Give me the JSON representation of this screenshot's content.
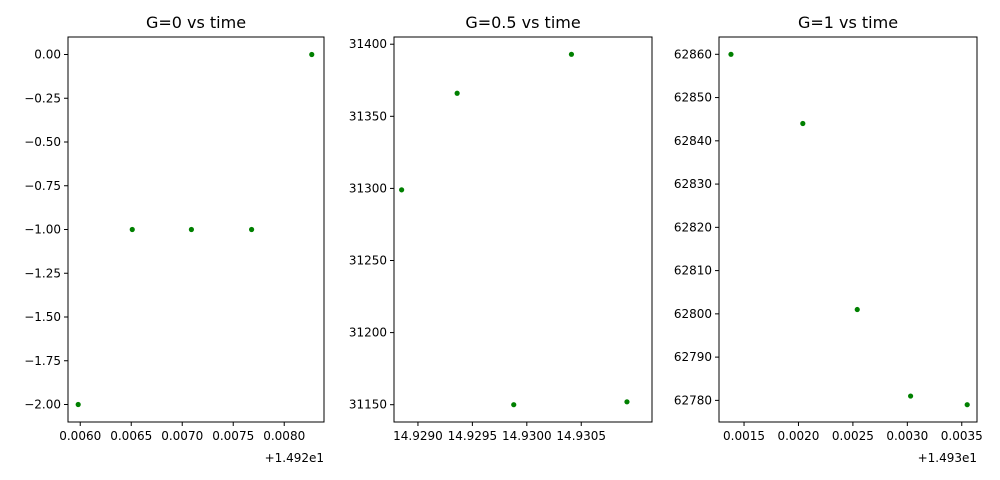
{
  "chart_data": [
    {
      "type": "scatter",
      "title": "G=0 vs time",
      "color": "#008000",
      "x_offset_label": "+1.492e1",
      "xlim": [
        0.00588,
        0.00839
      ],
      "ylim": [
        -2.1,
        0.1
      ],
      "xticks": [
        0.006,
        0.0065,
        0.007,
        0.0075,
        0.008
      ],
      "xtick_labels": [
        "0.0060",
        "0.0065",
        "0.0070",
        "0.0075",
        "0.0080"
      ],
      "yticks": [
        0.0,
        -0.25,
        -0.5,
        -0.75,
        -1.0,
        -1.25,
        -1.5,
        -1.75,
        -2.0
      ],
      "ytick_labels": [
        "0.00",
        "−0.25",
        "−0.50",
        "−0.75",
        "−1.00",
        "−1.25",
        "−1.50",
        "−1.75",
        "−2.00"
      ],
      "series": [
        {
          "x": [
            0.00598,
            0.00651,
            0.00709,
            0.00768,
            0.00827
          ],
          "y": [
            -2,
            -1,
            -1,
            -1,
            0
          ]
        }
      ]
    },
    {
      "type": "scatter",
      "title": "G=0.5 vs time",
      "color": "#008000",
      "x_offset_label": "",
      "xlim": [
        14.92878,
        14.93115
      ],
      "ylim": [
        31138,
        31405
      ],
      "xticks": [
        14.929,
        14.9295,
        14.93,
        14.9305
      ],
      "xtick_labels": [
        "14.9290",
        "14.9295",
        "14.9300",
        "14.9305"
      ],
      "yticks": [
        31150,
        31200,
        31250,
        31300,
        31350,
        31400
      ],
      "ytick_labels": [
        "31150",
        "31200",
        "31250",
        "31300",
        "31350",
        "31400"
      ],
      "series": [
        {
          "x": [
            14.92885,
            14.92936,
            14.92988,
            14.93041,
            14.93092
          ],
          "y": [
            31299,
            31366,
            31150,
            31393,
            31152
          ]
        }
      ]
    },
    {
      "type": "scatter",
      "title": "G=1 vs time",
      "color": "#008000",
      "x_offset_label": "+1.493e1",
      "xlim": [
        0.00127,
        0.00364
      ],
      "ylim": [
        62775,
        62864
      ],
      "xticks": [
        0.0015,
        0.002,
        0.0025,
        0.003,
        0.0035
      ],
      "xtick_labels": [
        "0.0015",
        "0.0020",
        "0.0025",
        "0.0030",
        "0.0035"
      ],
      "yticks": [
        62780,
        62790,
        62800,
        62810,
        62820,
        62830,
        62840,
        62850,
        62860
      ],
      "ytick_labels": [
        "62780",
        "62790",
        "62800",
        "62810",
        "62820",
        "62830",
        "62840",
        "62850",
        "62860"
      ],
      "series": [
        {
          "x": [
            0.00138,
            0.00204,
            0.00254,
            0.00303,
            0.00355
          ],
          "y": [
            62860,
            62844,
            62801,
            62781,
            62779
          ]
        }
      ]
    }
  ]
}
